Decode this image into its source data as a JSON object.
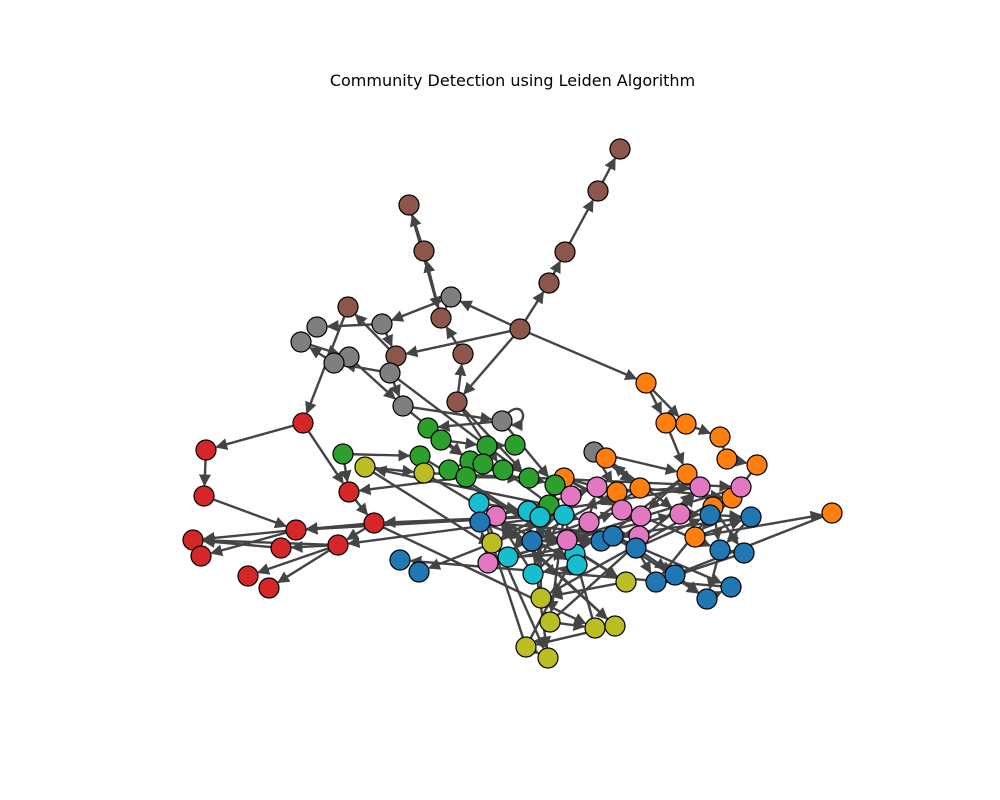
{
  "title": "Community Detection using Leiden Algorithm",
  "colors": {
    "edge": "#444444",
    "node_stroke": "#000000",
    "background": "#ffffff",
    "communities": {
      "blue": "#1f77b4",
      "orange": "#ff7f0e",
      "green": "#2ca02c",
      "red": "#d62728",
      "brown": "#8c564b",
      "pink": "#e377c2",
      "gray": "#7f7f7f",
      "olive": "#bcbd22",
      "cyan": "#17becf"
    }
  },
  "graph": {
    "directed": true,
    "node_count": 130
  }
}
